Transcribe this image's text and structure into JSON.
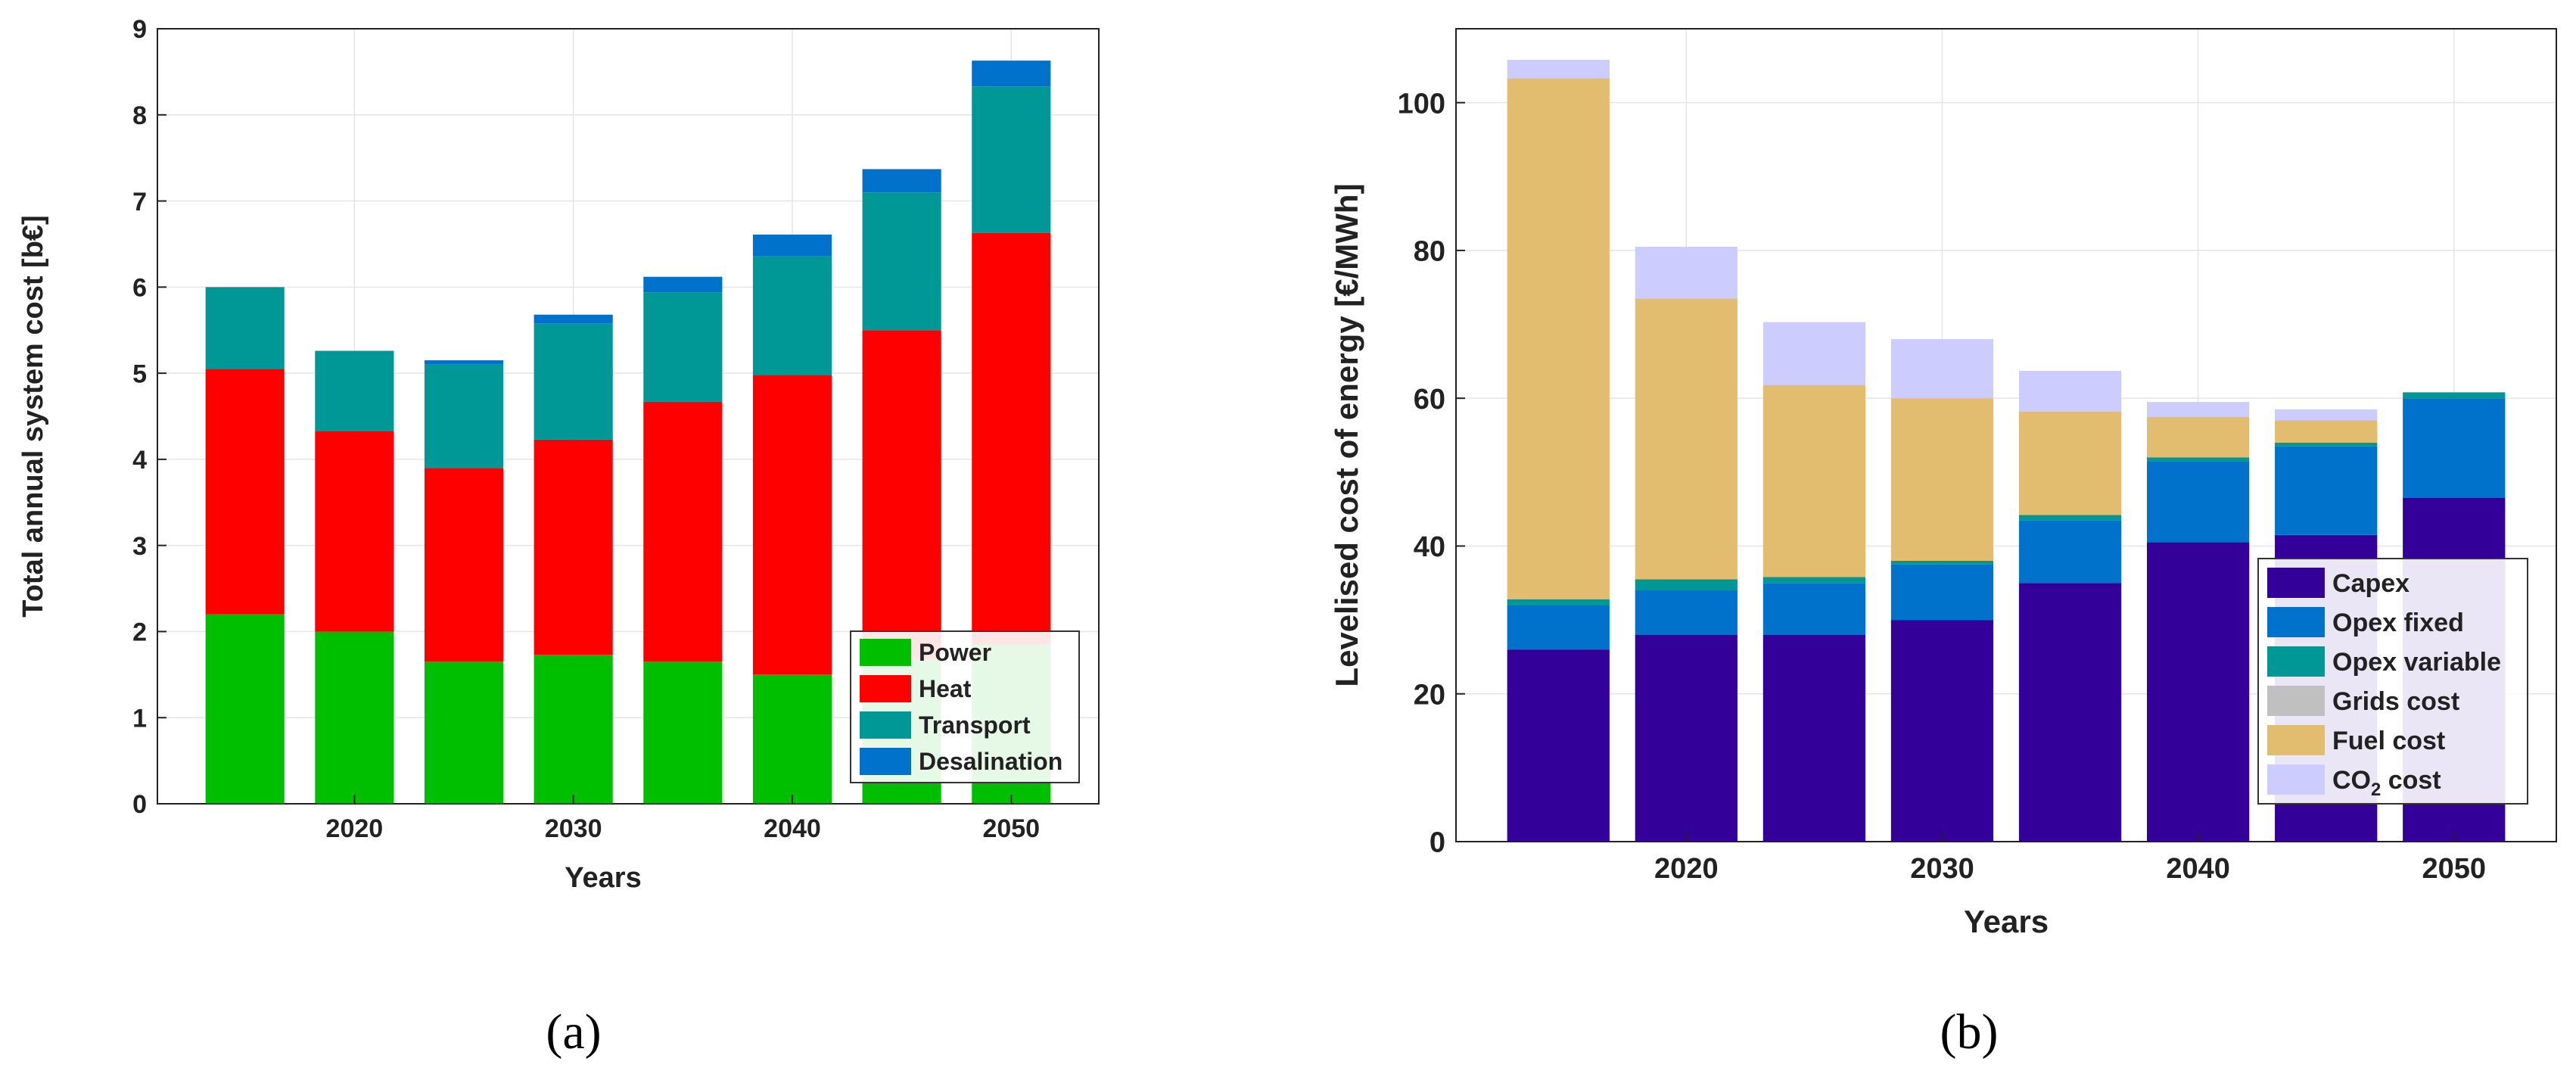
{
  "chart_data": [
    {
      "type": "bar",
      "stacked": true,
      "panel_label": "(a)",
      "title": "",
      "xlabel": "Years",
      "ylabel": "Total annual system cost [b€]",
      "ylim": [
        0,
        9
      ],
      "yticks": [
        0,
        1,
        2,
        3,
        4,
        5,
        6,
        7,
        8,
        9
      ],
      "xlim": [
        2011,
        2054
      ],
      "x": [
        2015,
        2020,
        2025,
        2030,
        2035,
        2040,
        2045,
        2050
      ],
      "xtick_values": [
        2020,
        2030,
        2040,
        2050
      ],
      "xtick_labels": [
        "2020",
        "2030",
        "2040",
        "2050"
      ],
      "bar_width": 3.6,
      "grid": true,
      "legend_position": "bottom-right",
      "series": [
        {
          "name": "Power",
          "color": "#00bf00",
          "values": [
            2.2,
            2.0,
            1.65,
            1.73,
            1.65,
            1.5,
            1.68,
            1.85
          ]
        },
        {
          "name": "Heat",
          "color": "#ff0000",
          "values": [
            2.85,
            2.33,
            2.25,
            2.5,
            3.02,
            3.48,
            3.82,
            4.78
          ]
        },
        {
          "name": "Transport",
          "color": "#009797",
          "values": [
            0.95,
            0.93,
            1.2,
            1.35,
            1.27,
            1.38,
            1.6,
            1.7
          ]
        },
        {
          "name": "Desalination",
          "color": "#0072cc",
          "values": [
            0.0,
            0.0,
            0.05,
            0.1,
            0.18,
            0.25,
            0.27,
            0.3
          ]
        }
      ]
    },
    {
      "type": "bar",
      "stacked": true,
      "panel_label": "(b)",
      "title": "",
      "xlabel": "Years",
      "ylabel": "Levelised cost of energy [€/MWh]",
      "ylim": [
        0,
        110
      ],
      "yticks": [
        0,
        20,
        40,
        60,
        80,
        100
      ],
      "xlim": [
        2011,
        2054
      ],
      "x": [
        2015,
        2020,
        2025,
        2030,
        2035,
        2040,
        2045,
        2050
      ],
      "xtick_values": [
        2020,
        2030,
        2040,
        2050
      ],
      "xtick_labels": [
        "2020",
        "2030",
        "2040",
        "2050"
      ],
      "bar_width": 4.0,
      "grid": true,
      "legend_position": "bottom-right",
      "series": [
        {
          "name": "Capex",
          "color": "#330099",
          "values": [
            26,
            28,
            28,
            30,
            35,
            40.5,
            41.5,
            46.5
          ]
        },
        {
          "name": "Opex fixed",
          "color": "#0072cc",
          "values": [
            6,
            6,
            7,
            7.5,
            8.5,
            11,
            12,
            13.5
          ]
        },
        {
          "name": "Opex variable",
          "color": "#009797",
          "values": [
            0.8,
            1.5,
            0.8,
            0.5,
            0.7,
            0.5,
            0.5,
            0.8
          ]
        },
        {
          "name": "Grids cost",
          "color": "#c0c0c0",
          "values": [
            0,
            0,
            0,
            0,
            0,
            0,
            0,
            0
          ]
        },
        {
          "name": "Fuel cost",
          "color": "#e3bd6f",
          "values": [
            70.5,
            38,
            26,
            22,
            14,
            5.5,
            3,
            0
          ]
        },
        {
          "name": "CO2 cost",
          "color": "#ccccff",
          "values": [
            2.5,
            7,
            8.5,
            8,
            5.5,
            2,
            1.5,
            0
          ]
        }
      ]
    }
  ]
}
